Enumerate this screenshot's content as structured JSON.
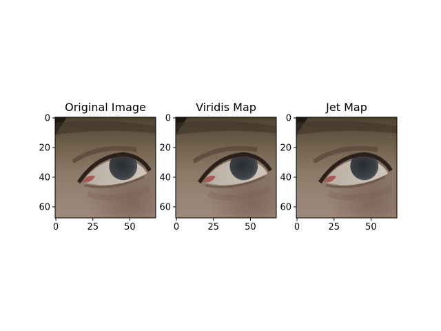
{
  "chart_data": {
    "type": "image",
    "panels": [
      {
        "title": "Original Image",
        "xticks": [
          "0",
          "25",
          "50"
        ],
        "yticks": [
          "0",
          "20",
          "40",
          "60"
        ],
        "xlim": [
          0,
          68
        ],
        "ylim": [
          68,
          0
        ],
        "grid": false,
        "content": "rgb photograph close-up of a human eye"
      },
      {
        "title": "Viridis Map",
        "xticks": [
          "0",
          "25",
          "50"
        ],
        "yticks": [
          "0",
          "20",
          "40",
          "60"
        ],
        "xlim": [
          0,
          68
        ],
        "ylim": [
          68,
          0
        ],
        "grid": false,
        "content": "rgb photograph close-up of a human eye"
      },
      {
        "title": "Jet Map",
        "xticks": [
          "0",
          "25",
          "50"
        ],
        "yticks": [
          "0",
          "20",
          "40",
          "60"
        ],
        "xlim": [
          0,
          68
        ],
        "ylim": [
          68,
          0
        ],
        "grid": false,
        "content": "rgb photograph close-up of a human eye"
      }
    ],
    "colors": {
      "skin_top": "#4e4233",
      "skin_mid": "#8b7a68",
      "skin_bottom": "#a08b7d",
      "iris": "#3c3f44",
      "sclera": "#c6bdb2",
      "eyelid_shadow": "#5a4536",
      "lash": "#2c211a",
      "caruncle": "#a85a55",
      "corner_dark": "#1f1a14"
    }
  }
}
